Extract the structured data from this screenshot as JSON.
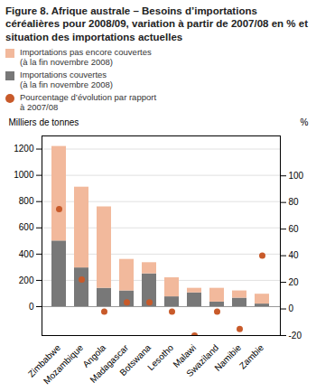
{
  "chart_data": {
    "type": "bar",
    "title": "Figure 8. Afrique australe – Besoins d’importations céréalières pour 2008/09, variation à partir de 2007/08 en % et situation des importations actuelles",
    "categories": [
      "Zimbabwe",
      "Mozambique",
      "Angola",
      "Madagascar",
      "Botswana",
      "Lesotho",
      "Malawi",
      "Swaziland",
      "Namibie",
      "Zambie"
    ],
    "series": [
      {
        "name": "Importations pas encore couvertes\n(à la fin novembre 2008)",
        "type": "bar",
        "color": "#f2b99c",
        "values": [
          720,
          615,
          620,
          240,
          85,
          145,
          35,
          105,
          55,
          75
        ]
      },
      {
        "name": "Importations couvertes\n(à la fin novembre 2008)",
        "type": "bar",
        "color": "#787878",
        "values": [
          500,
          295,
          140,
          120,
          250,
          75,
          105,
          35,
          65,
          20
        ]
      },
      {
        "name": "Pourcentage d’évolution par rapport\nà 2007/08",
        "type": "scatter",
        "axis": "y2",
        "color": "#c85a2a",
        "values": [
          75,
          22,
          -2,
          5,
          5,
          -2,
          -20,
          -2,
          -15,
          40
        ]
      }
    ],
    "stacked": true,
    "ylabel": "Milliers de tonnes",
    "y2label": "%",
    "ylim": [
      -220,
      1300
    ],
    "yticks": [
      0,
      200,
      400,
      600,
      800,
      1000,
      1200
    ],
    "y2lim": [
      -20,
      130
    ],
    "y2ticks": [
      -20,
      0,
      20,
      40,
      60,
      80,
      100
    ],
    "grid": true
  }
}
